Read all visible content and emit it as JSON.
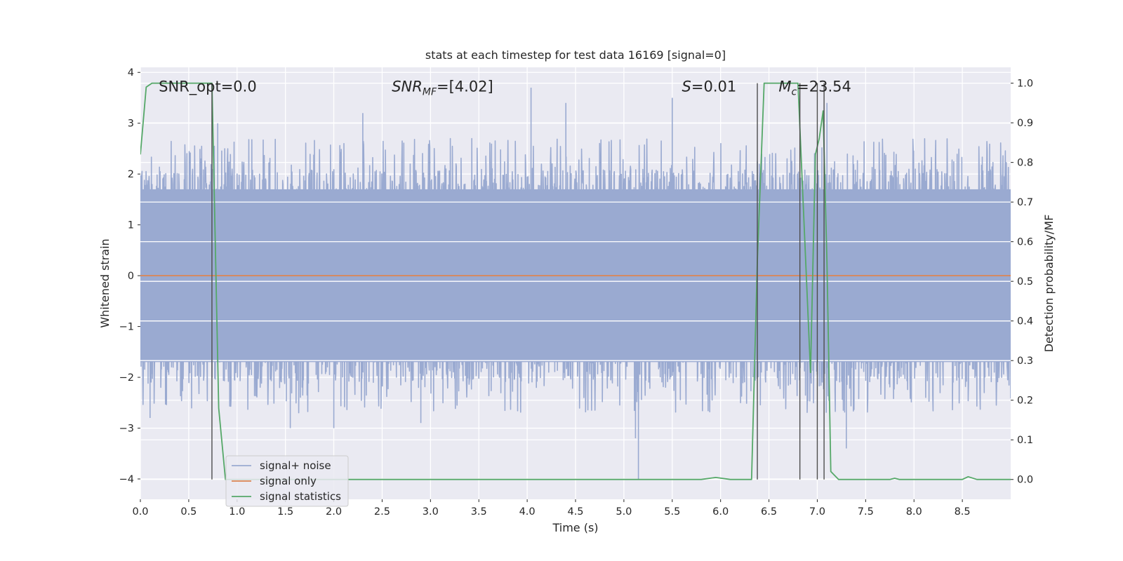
{
  "chart_data": {
    "type": "line",
    "title": "stats at each timestep for test data 16169 [signal=0]",
    "xlabel": "Time (s)",
    "ylabel": "Whitened strain",
    "y2label": "Detection probability/MF",
    "xlim": [
      0.0,
      9.0
    ],
    "ylim": [
      -4.4,
      4.1
    ],
    "y2lim": [
      -0.05,
      1.04
    ],
    "x_ticks": [
      0.0,
      0.5,
      1.0,
      1.5,
      2.0,
      2.5,
      3.0,
      3.5,
      4.0,
      4.5,
      5.0,
      5.5,
      6.0,
      6.5,
      7.0,
      7.5,
      8.0,
      8.5
    ],
    "x_tick_labels": [
      "0.0",
      "0.5",
      "1.0",
      "1.5",
      "2.0",
      "2.5",
      "3.0",
      "3.5",
      "4.0",
      "4.5",
      "5.0",
      "5.5",
      "6.0",
      "6.5",
      "7.0",
      "7.5",
      "8.0",
      "8.5"
    ],
    "y_ticks": [
      -4,
      -3,
      -2,
      -1,
      0,
      1,
      2,
      3,
      4
    ],
    "y_tick_labels": [
      "−4",
      "−3",
      "−2",
      "−1",
      "0",
      "1",
      "2",
      "3",
      "4"
    ],
    "y2_ticks": [
      0.0,
      0.1,
      0.2,
      0.3,
      0.4,
      0.5,
      0.6,
      0.7,
      0.8,
      0.9,
      1.0
    ],
    "y2_tick_labels": [
      "0.0",
      "0.1",
      "0.2",
      "0.3",
      "0.4",
      "0.5",
      "0.6",
      "0.7",
      "0.8",
      "0.9",
      "1.0"
    ],
    "grid": true,
    "legend_position": "lower-left",
    "annotations": [
      {
        "label": "SNR_opt=0.0",
        "x": 0.19,
        "y": 3.72
      },
      {
        "label": "SNR_MF=[4.02]",
        "x": 2.6,
        "y": 3.72
      },
      {
        "label": "S=0.01",
        "x": 5.6,
        "y": 3.72
      },
      {
        "label": "M_c=23.54",
        "x": 6.6,
        "y": 3.72
      }
    ],
    "series": [
      {
        "name": "signal+ noise",
        "color": "#9aaad1",
        "axis": "left",
        "kind": "dense-noise",
        "x_range": [
          0.0,
          9.0
        ],
        "band": [
          -1.7,
          1.7
        ],
        "peaks": [
          {
            "x": 0.8,
            "y": 3.0
          },
          {
            "x": 2.3,
            "y": 3.2
          },
          {
            "x": 4.04,
            "y": 3.7
          },
          {
            "x": 4.4,
            "y": 3.4
          },
          {
            "x": 5.5,
            "y": 3.5
          },
          {
            "x": 7.1,
            "y": 3.4
          },
          {
            "x": 0.1,
            "y": -2.8
          },
          {
            "x": 1.55,
            "y": -3.0
          },
          {
            "x": 2.0,
            "y": -3.0
          },
          {
            "x": 5.15,
            "y": -4.0
          },
          {
            "x": 5.12,
            "y": -3.2
          },
          {
            "x": 7.3,
            "y": -3.4
          },
          {
            "x": 2.9,
            "y": -2.9
          }
        ]
      },
      {
        "name": "signal only",
        "color": "#dd8452",
        "axis": "left",
        "x": [
          0.0,
          9.0
        ],
        "y": [
          0.0,
          0.0
        ]
      },
      {
        "name": "signal statistics",
        "color": "#55a868",
        "axis": "right",
        "x": [
          0.0,
          0.06,
          0.12,
          0.2,
          0.3,
          0.5,
          0.7,
          0.74,
          0.81,
          0.88,
          1.0,
          2.0,
          3.0,
          4.0,
          5.0,
          5.8,
          5.95,
          6.1,
          6.32,
          6.38,
          6.45,
          6.5,
          6.6,
          6.8,
          6.93,
          6.98,
          7.02,
          7.06,
          7.1,
          7.14,
          7.22,
          7.5,
          7.75,
          7.8,
          7.85,
          8.0,
          8.5,
          8.56,
          8.65,
          8.8,
          9.0
        ],
        "y": [
          0.82,
          0.99,
          1.0,
          1.0,
          1.0,
          1.0,
          1.0,
          1.0,
          0.18,
          0.0,
          0.0,
          0.0,
          0.0,
          0.0,
          0.0,
          0.0,
          0.005,
          0.0,
          0.0,
          0.55,
          1.0,
          1.0,
          1.0,
          1.0,
          0.27,
          0.82,
          0.86,
          0.93,
          0.55,
          0.02,
          0.0,
          0.0,
          0.0,
          0.003,
          0.0,
          0.0,
          0.0,
          0.007,
          0.0,
          0.0,
          0.0
        ]
      }
    ],
    "vlines": [
      0.74,
      6.38,
      6.82,
      7.0,
      7.07
    ]
  }
}
